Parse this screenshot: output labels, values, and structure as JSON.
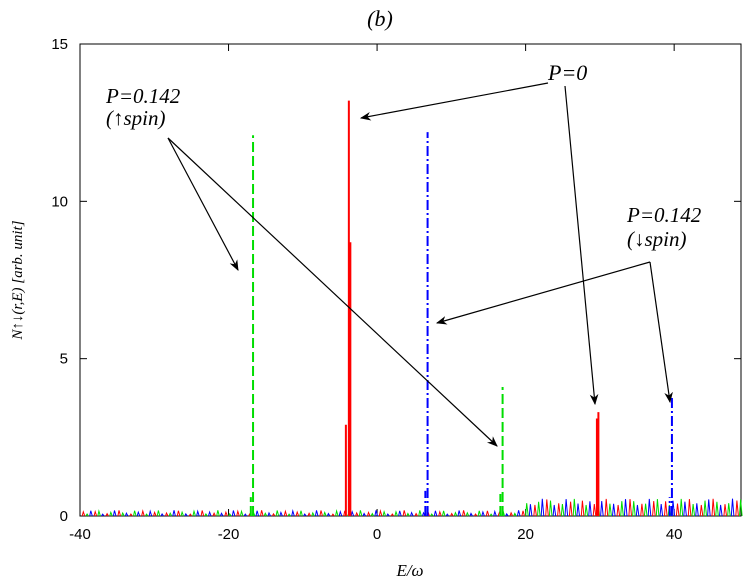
{
  "chart_data": {
    "type": "line",
    "title": "(b)",
    "xlabel": "E/ω",
    "ylabel": "N↑↓(r,E) [arb. unit]",
    "xlim": [
      -40,
      49
    ],
    "ylim": [
      0,
      15
    ],
    "xticks": [
      -40,
      -20,
      0,
      20,
      40
    ],
    "yticks": [
      0,
      5,
      10,
      15
    ],
    "grid": false,
    "series": [
      {
        "name": "P=0",
        "color": "#ff0000",
        "style": "solid",
        "peaks": [
          {
            "x": -3.8,
            "y": 13.2
          },
          {
            "x": -3.6,
            "y": 8.7
          },
          {
            "x": -4.2,
            "y": 2.9
          },
          {
            "x": 29.8,
            "y": 3.3
          },
          {
            "x": 29.6,
            "y": 3.1
          }
        ]
      },
      {
        "name": "P=0.142 (↑spin)",
        "color": "#00dd00",
        "style": "dashed",
        "peaks": [
          {
            "x": -16.7,
            "y": 12.1
          },
          {
            "x": -17.0,
            "y": 0.6
          },
          {
            "x": 16.9,
            "y": 4.1
          },
          {
            "x": 16.6,
            "y": 0.7
          }
        ]
      },
      {
        "name": "P=0.142 (↓spin)",
        "color": "#0000ff",
        "style": "dashdot",
        "peaks": [
          {
            "x": 6.8,
            "y": 12.2
          },
          {
            "x": 6.5,
            "y": 0.8
          },
          {
            "x": 39.7,
            "y": 3.8
          },
          {
            "x": 39.4,
            "y": 0.6
          }
        ]
      }
    ],
    "annotations": [
      {
        "id": "ann-p0",
        "text": "P=0"
      },
      {
        "id": "ann-up-line1",
        "text": "P=0.142"
      },
      {
        "id": "ann-up-line2",
        "text": "(↑spin)"
      },
      {
        "id": "ann-down-line1",
        "text": "P=0.142"
      },
      {
        "id": "ann-down-line2",
        "text": "(↓spin)"
      }
    ]
  }
}
